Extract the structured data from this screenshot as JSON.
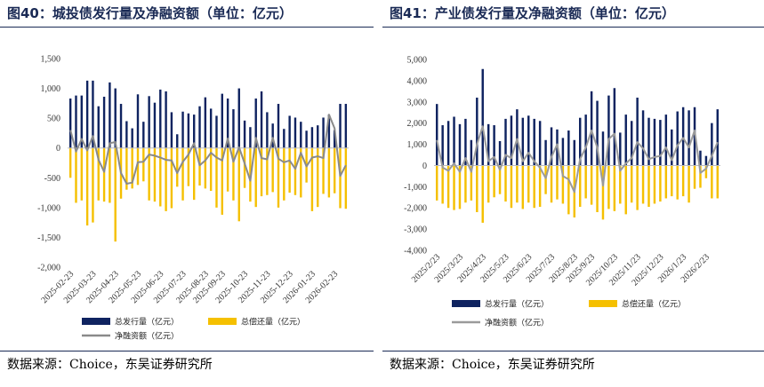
{
  "chart_data": [
    {
      "id": "left",
      "type": "bar",
      "title": "图40：城投债发行量及净融资额（单位：亿元）",
      "source": "数据来源：Choice，东吴证券研究所",
      "ylim": [
        -2000,
        1500
      ],
      "yticks": [
        1500,
        1000,
        500,
        0,
        -500,
        -1000,
        -1500,
        -2000
      ],
      "ytick_labels": [
        "1,500",
        "1,000",
        "500",
        "0",
        "-500",
        "-1,000",
        "-1,500",
        "-2,000"
      ],
      "xtick_labels": [
        "2025-02-23",
        "2025-03-23",
        "2025-04-23",
        "2025-05-23",
        "2025-06-23",
        "2025-07-23",
        "2025-08-23",
        "2025-09-23",
        "2025-10-23",
        "2025-11-23",
        "2025-12-23",
        "2026-01-23",
        "2026-02-23"
      ],
      "colors": {
        "issuance": "#0f2360",
        "repayment": "#f5c000",
        "net": "#8a8a8a"
      },
      "series": [
        {
          "name": "总发行量（亿元）",
          "values": [
            830,
            880,
            880,
            1130,
            1130,
            700,
            860,
            1100,
            1000,
            740,
            450,
            330,
            900,
            440,
            870,
            760,
            980,
            950,
            600,
            230,
            610,
            580,
            560,
            700,
            850,
            660,
            540,
            910,
            830,
            650,
            1000,
            460,
            350,
            830,
            950,
            600,
            410,
            740,
            320,
            540,
            510,
            440,
            290,
            350,
            380,
            510,
            560,
            300,
            740,
            740
          ]
        },
        {
          "name": "总偿还量（亿元）",
          "values": [
            -500,
            -920,
            -880,
            -1300,
            -1250,
            -880,
            -900,
            -920,
            -1570,
            -850,
            -700,
            -680,
            -620,
            -560,
            -880,
            -900,
            -980,
            -1060,
            -1010,
            -650,
            -880,
            -640,
            -870,
            -630,
            -680,
            -720,
            -1000,
            -1120,
            -730,
            -880,
            -1230,
            -670,
            -900,
            -990,
            -810,
            -790,
            -740,
            -1000,
            -880,
            -750,
            -790,
            -830,
            -580,
            -1060,
            -990,
            -770,
            -830,
            -760,
            -1010,
            -1020
          ]
        },
        {
          "name": "净融资额（亿元）",
          "values": [
            300,
            -60,
            150,
            -40,
            200,
            -200,
            -400,
            80,
            100,
            -420,
            -600,
            -580,
            -240,
            -230,
            -110,
            -130,
            -160,
            -200,
            -210,
            -420,
            -230,
            -110,
            80,
            -290,
            -210,
            -80,
            -160,
            -210,
            160,
            -230,
            10,
            -260,
            -550,
            170,
            -170,
            -190,
            170,
            -180,
            -240,
            -210,
            -350,
            -80,
            -310,
            -160,
            -140,
            -170,
            560,
            330,
            -470,
            -290
          ]
        }
      ],
      "legend": [
        "总发行量（亿元）",
        "总偿还量（亿元）",
        "净融资额（亿元）"
      ]
    },
    {
      "id": "right",
      "type": "bar",
      "title": "图41：产业债发行量及净融资额（单位：亿元）",
      "source": "数据来源：Choice，东吴证券研究所",
      "ylim": [
        -4000,
        5000
      ],
      "yticks": [
        5000,
        4000,
        3000,
        2000,
        1000,
        0,
        -1000,
        -2000,
        -3000,
        -4000
      ],
      "ytick_labels": [
        "5,000",
        "4,000",
        "3,000",
        "2,000",
        "1,000",
        "0",
        "-1,000",
        "-2,000",
        "-3,000",
        "-4,000"
      ],
      "xtick_labels": [
        "2025/2/23",
        "2025/3/23",
        "2025/4/23",
        "2025/5/23",
        "2025/6/23",
        "2025/7/23",
        "2025/8/23",
        "2025/9/23",
        "2025/10/23",
        "2025/11/23",
        "2025/12/23",
        "2026/1/23",
        "2026/2/23"
      ],
      "colors": {
        "issuance": "#0f2360",
        "repayment": "#f5c000",
        "net": "#9a9a9a"
      },
      "series": [
        {
          "name": "总发行量（亿元）",
          "values": [
            2900,
            1900,
            2100,
            2300,
            1950,
            2200,
            1200,
            3200,
            4550,
            1950,
            1900,
            1150,
            2200,
            2350,
            2650,
            2250,
            2350,
            2200,
            2100,
            1200,
            1800,
            1700,
            1300,
            1650,
            1200,
            2250,
            2400,
            3500,
            3050,
            1600,
            3300,
            3650,
            1550,
            2400,
            2100,
            3200,
            2600,
            2250,
            2200,
            2150,
            2400,
            1700,
            2550,
            2750,
            2600,
            2750,
            700,
            450,
            2000,
            2650
          ]
        },
        {
          "name": "总偿还量（亿元）",
          "values": [
            -1650,
            -1800,
            -2000,
            -2100,
            -2050,
            -1750,
            -1650,
            -2200,
            -2700,
            -1750,
            -1500,
            -1350,
            -1700,
            -2000,
            -1750,
            -2050,
            -1750,
            -2000,
            -1950,
            -1350,
            -1750,
            -1600,
            -1800,
            -2300,
            -2450,
            -1950,
            -1550,
            -1850,
            -2200,
            -2550,
            -2050,
            -2150,
            -1800,
            -2300,
            -1750,
            -2100,
            -1800,
            -1950,
            -1800,
            -1700,
            -1550,
            -1450,
            -1600,
            -1450,
            -1750,
            -1100,
            -1050,
            -600,
            -1550,
            -1550
          ]
        },
        {
          "name": "净融资额（亿元）",
          "values": [
            1200,
            -100,
            -250,
            100,
            -300,
            350,
            -300,
            1000,
            1850,
            200,
            400,
            -200,
            500,
            350,
            1250,
            200,
            600,
            200,
            -100,
            -600,
            400,
            1000,
            -500,
            -650,
            -1250,
            300,
            850,
            1650,
            850,
            -950,
            1250,
            1500,
            -250,
            100,
            350,
            1100,
            800,
            300,
            400,
            450,
            850,
            250,
            950,
            1300,
            850,
            1650,
            -350,
            -150,
            450,
            1100
          ]
        }
      ],
      "legend": [
        "总发行量（亿元）",
        "总偿还量（亿元）",
        "净融资额（亿元）"
      ]
    }
  ]
}
